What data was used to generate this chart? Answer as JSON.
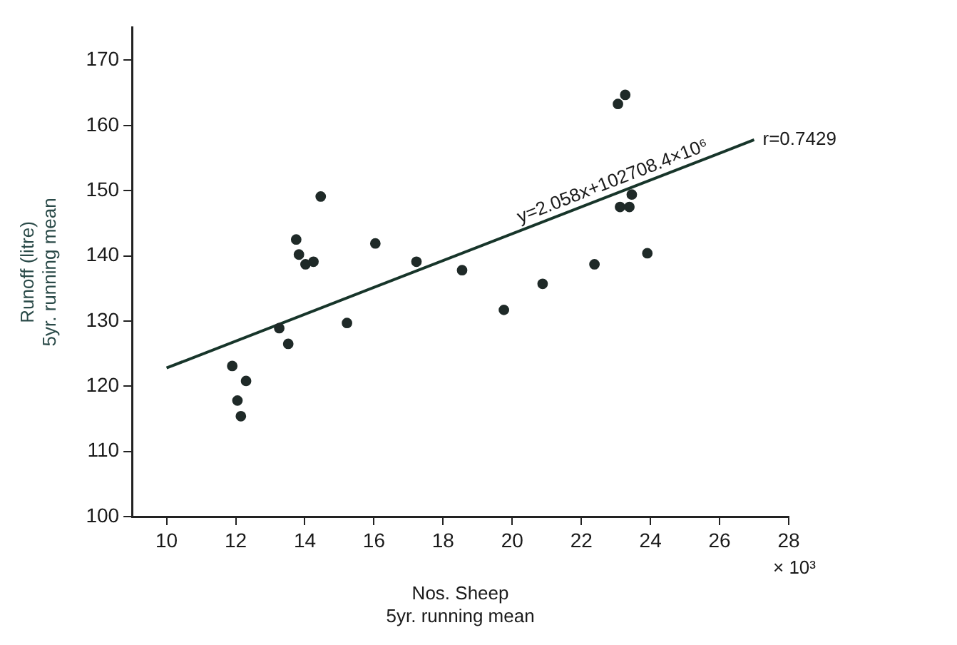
{
  "chart_data": {
    "type": "scatter",
    "xlabel": "Nos. Sheep\n5yr. running mean",
    "ylabel": "Runoff (litre)\n5yr. running mean",
    "xlim": [
      9,
      28
    ],
    "xticks": [
      10,
      12,
      14,
      16,
      18,
      20,
      22,
      24,
      26,
      28
    ],
    "ylim": [
      100,
      175
    ],
    "yticks": [
      100,
      110,
      120,
      130,
      140,
      150,
      160,
      170
    ],
    "grid": false,
    "legend": false,
    "marker": "circle",
    "series": [
      {
        "color": "#1f2a28",
        "x": [
          11.9,
          12.3,
          12.05,
          12.15,
          13.26,
          13.52,
          13.75,
          13.83,
          14.02,
          14.25,
          14.46,
          15.22,
          16.04,
          17.23,
          18.55,
          19.76,
          20.88,
          22.38,
          23.06,
          23.27,
          23.12,
          23.39,
          23.46,
          23.91
        ],
        "values": [
          123.1,
          120.8,
          117.8,
          115.4,
          128.9,
          126.5,
          142.5,
          140.2,
          138.7,
          139.1,
          149.1,
          129.7,
          141.9,
          139.1,
          137.8,
          131.7,
          135.7,
          138.7,
          163.3,
          164.7,
          147.5,
          147.5,
          149.4,
          140.4
        ]
      },
      {
        "type": "line",
        "color": "#17352a",
        "x": [
          10,
          27
        ],
        "values": [
          122.8,
          157.8
        ],
        "marker": "none"
      }
    ],
    "annotations": [
      "y=2.058x+102708.4×10⁶",
      "r=0.7429",
      "× 10³"
    ]
  }
}
